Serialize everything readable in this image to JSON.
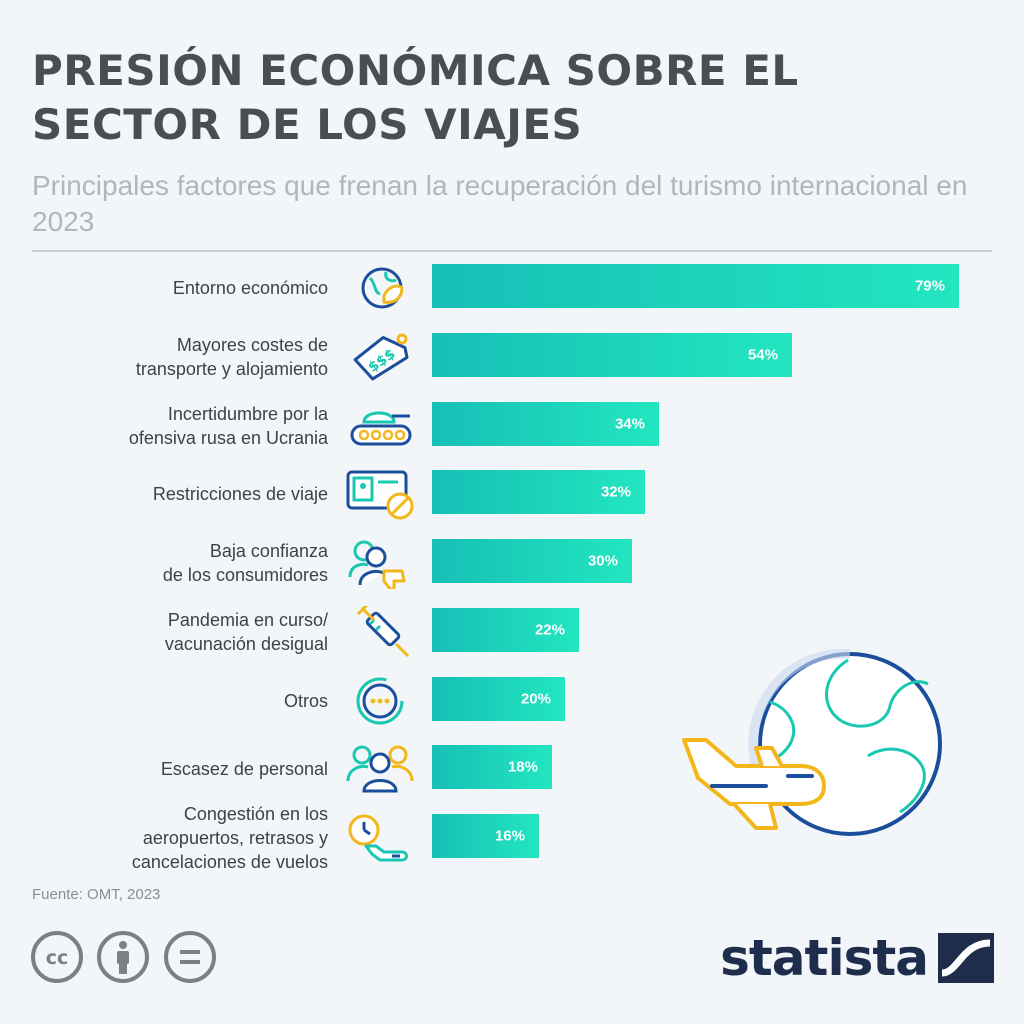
{
  "title": "PRESIÓN ECONÓMICA SOBRE EL SECTOR DE LOS VIAJES",
  "subtitle": "Principales factores que frenan la recuperación del turismo internacional en 2023",
  "source": "Fuente: OMT, 2023",
  "brand": "statista",
  "colors": {
    "bar_start": "#17bfb6",
    "bar_end": "#22e6c0",
    "icon_blue": "#1b4f9c",
    "icon_teal": "#18c8b0",
    "icon_yellow": "#f3b71b",
    "title": "#4a4e52"
  },
  "chart_data": {
    "type": "bar",
    "orientation": "horizontal",
    "title": "PRESIÓN ECONÓMICA SOBRE EL SECTOR DE LOS VIAJES",
    "subtitle": "Principales factores que frenan la recuperación del turismo internacional en 2023",
    "categories": [
      "Entorno económico",
      "Mayores costes de\ntransporte y alojamiento",
      "Incertidumbre por la\nofensiva rusa en Ucrania",
      "Restricciones de viaje",
      "Baja confianza\nde los consumidores",
      "Pandemia en curso/\nvacunación desigual",
      "Otros",
      "Escasez de personal",
      "Congestión en los\naeropuertos, retrasos y\ncancelaciones de vuelos"
    ],
    "values": [
      79,
      54,
      34,
      32,
      30,
      22,
      20,
      18,
      16
    ],
    "value_labels": [
      "79%",
      "54%",
      "34%",
      "32%",
      "30%",
      "22%",
      "20%",
      "18%",
      "16%"
    ],
    "icons": [
      "globe-leaf-icon",
      "price-tag-icon",
      "tank-icon",
      "id-card-prohibited-icon",
      "user-thumbs-down-icon",
      "syringe-icon",
      "dots-ring-icon",
      "group-icon",
      "clock-plane-icon"
    ],
    "xlim": [
      0,
      79
    ],
    "grid": false,
    "legend": "none"
  }
}
